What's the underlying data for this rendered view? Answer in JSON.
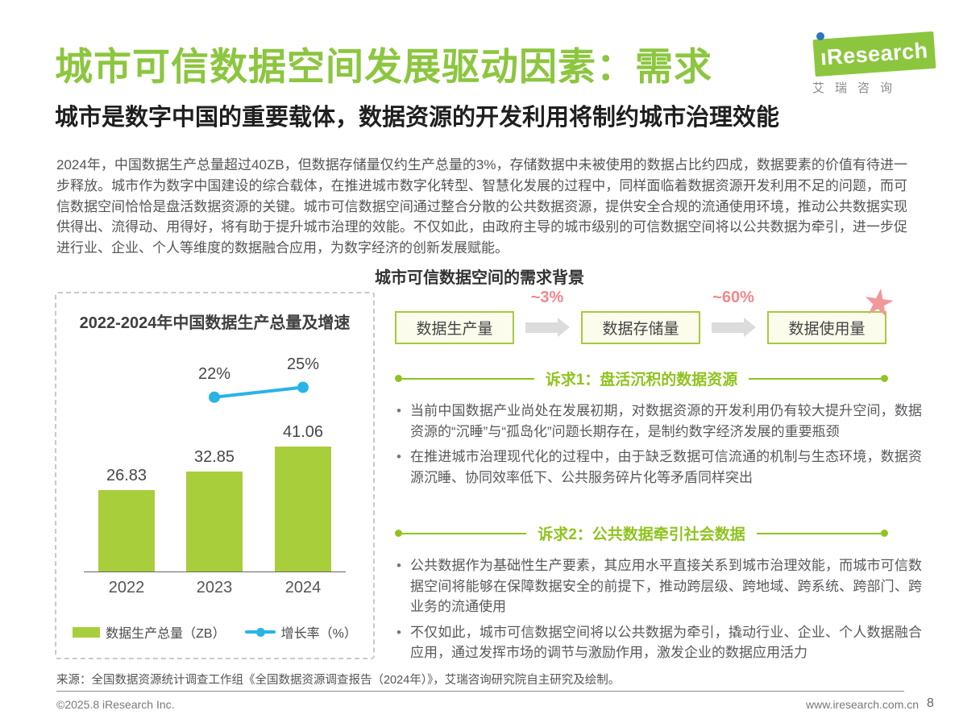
{
  "page": {
    "title": "城市可信数据空间发展驱动因素：需求",
    "subtitle": "城市是数字中国的重要载体，数据资源的开发利用将制约城市治理效能",
    "intro": "2024年，中国数据生产总量超过40ZB，但数据存储量仅约生产总量的3%，存储数据中未被使用的数据占比约四成，数据要素的价值有待进一步释放。城市作为数字中国建设的综合载体，在推进城市数字化转型、智慧化发展的过程中，同样面临着数据资源开发利用不足的问题，而可信数据空间恰恰是盘活数据资源的关键。城市可信数据空间通过整合分散的公共数据资源，提供安全合规的流通使用环境，推动公共数据实现供得出、流得动、用得好，将有助于提升城市治理的效能。不仅如此，由政府主导的城市级别的可信数据空间将以公共数据为牵引，进一步促进行业、企业、个人等维度的数据融合应用，为数字经济的创新发展赋能。",
    "section_title": "城市可信数据空间的需求背景"
  },
  "logo": {
    "brand": "ıResearch",
    "caption": "艾瑞咨询"
  },
  "chart_data": {
    "type": "bar+line",
    "title": "2022-2024年中国数据生产总量及增速",
    "categories": [
      "2022",
      "2023",
      "2024"
    ],
    "series": [
      {
        "name": "数据生产总量（ZB）",
        "type": "bar",
        "values": [
          26.83,
          32.85,
          41.06
        ],
        "labels": [
          "26.83",
          "32.85",
          "41.06"
        ],
        "color": "#a9ce3c"
      },
      {
        "name": "增长率（%）",
        "type": "line",
        "values": [
          null,
          22,
          25
        ],
        "labels": [
          null,
          "22%",
          "25%"
        ],
        "color": "#29b3e6"
      }
    ],
    "legend_position": "bottom",
    "y_axis_visible": false,
    "grid": false
  },
  "flow": {
    "boxes": [
      "数据生产量",
      "数据存储量",
      "数据使用量"
    ],
    "arrow_labels": [
      "~3%",
      "~60%"
    ],
    "star_icon": "★"
  },
  "demand1": {
    "heading": "诉求1：盘活沉积的数据资源",
    "bullets": [
      "当前中国数据产业尚处在发展初期，对数据资源的开发利用仍有较大提升空间，数据资源的“沉睡”与“孤岛化”问题长期存在，是制约数字经济发展的重要瓶颈",
      "在推进城市治理现代化的过程中，由于缺乏数据可信流通的机制与生态环境，数据资源沉睡、协同效率低下、公共服务碎片化等矛盾同样突出"
    ]
  },
  "demand2": {
    "heading": "诉求2：公共数据牵引社会数据",
    "bullets": [
      "公共数据作为基础性生产要素，其应用水平直接关系到城市治理效能，而城市可信数据空间将能够在保障数据安全的前提下，推动跨层级、跨地域、跨系统、跨部门、跨业务的流通使用",
      "不仅如此，城市可信数据空间将以公共数据为牵引，撬动行业、企业、个人数据融合应用，通过发挥市场的调节与激励作用，激发企业的数据应用活力"
    ]
  },
  "footer": {
    "source": "来源：全国数据资源统计调查工作组《全国数据资源调查报告（2024年）》，艾瑞咨询研究院自主研究及绘制。",
    "copyright": "©2025.8 iResearch Inc.",
    "website": "www.iresearch.com.cn",
    "page_number": "8"
  },
  "colors": {
    "title_green": "#8cc63f",
    "heading_green": "#8fc31f",
    "bar_green": "#a9ce3c",
    "line_cyan": "#29b3e6",
    "pink": "#f2878c",
    "box_fill": "#fbfcec",
    "box_border": "#a9c93e"
  }
}
